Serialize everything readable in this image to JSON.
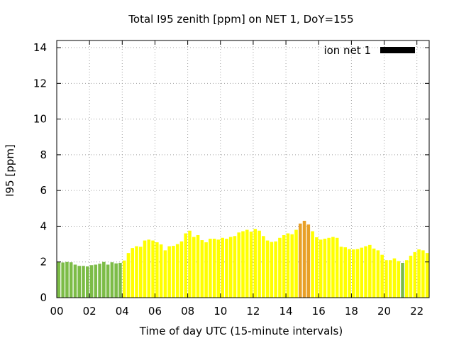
{
  "chart_data": {
    "type": "bar",
    "title": "Total I95 zenith [ppm] on NET 1, DoY=155",
    "xlabel": "Time of day UTC (15-minute intervals)",
    "ylabel": "I95 [ppm]",
    "legend": {
      "label": "ion net 1",
      "position": "top-right",
      "swatch_color": "#000000"
    },
    "xlim": [
      0,
      22.75
    ],
    "ylim": [
      0,
      14.4
    ],
    "x_ticks": [
      0,
      2,
      4,
      6,
      8,
      10,
      12,
      14,
      16,
      18,
      20,
      22
    ],
    "x_tick_labels": [
      "00",
      "02",
      "04",
      "06",
      "08",
      "10",
      "12",
      "14",
      "16",
      "18",
      "20",
      "22"
    ],
    "y_ticks": [
      0,
      2,
      4,
      6,
      8,
      10,
      12,
      14
    ],
    "y_tick_labels": [
      "0",
      "2",
      "4",
      "6",
      "8",
      "10",
      "12",
      "14"
    ],
    "grid": true,
    "bar_width_hours": 0.25,
    "color_scale": [
      {
        "max": 2.0,
        "color": "#7cbc47"
      },
      {
        "max": 4.0,
        "color": "#ffff00"
      },
      {
        "max": 99,
        "color": "#e8a028"
      }
    ],
    "values": [
      2.0,
      1.97,
      2.0,
      1.98,
      1.85,
      1.78,
      1.78,
      1.75,
      1.82,
      1.85,
      1.9,
      2.0,
      1.85,
      1.98,
      1.92,
      1.95,
      2.08,
      2.5,
      2.78,
      2.88,
      2.85,
      3.2,
      3.25,
      3.2,
      3.1,
      2.98,
      2.65,
      2.88,
      2.9,
      3.0,
      3.15,
      3.6,
      3.75,
      3.4,
      3.5,
      3.22,
      3.1,
      3.3,
      3.3,
      3.25,
      3.35,
      3.3,
      3.4,
      3.45,
      3.65,
      3.72,
      3.8,
      3.7,
      3.85,
      3.75,
      3.45,
      3.2,
      3.12,
      3.15,
      3.35,
      3.5,
      3.6,
      3.55,
      3.8,
      4.15,
      4.3,
      4.1,
      3.72,
      3.38,
      3.25,
      3.3,
      3.35,
      3.4,
      3.35,
      2.85,
      2.82,
      2.72,
      2.7,
      2.72,
      2.8,
      2.88,
      2.95,
      2.75,
      2.65,
      2.4,
      2.1,
      2.1,
      2.2,
      2.05,
      1.95,
      2.1,
      2.35,
      2.55,
      2.7,
      2.65,
      2.5
    ]
  }
}
